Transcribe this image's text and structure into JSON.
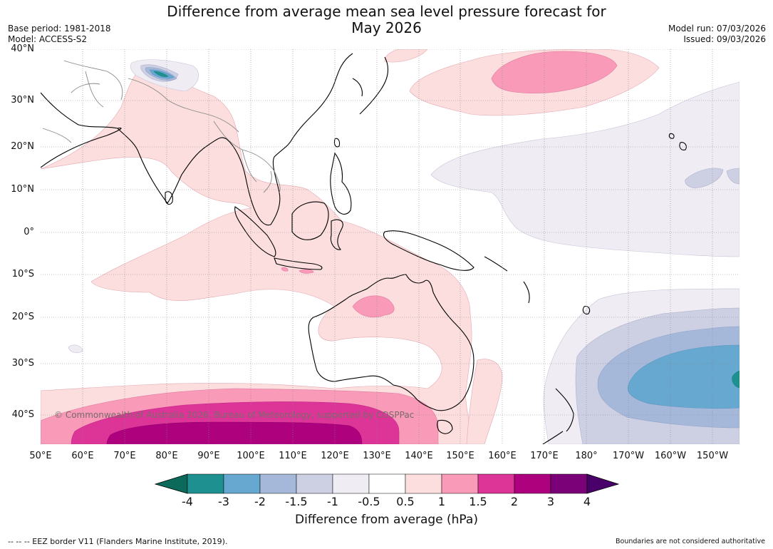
{
  "title_line1": "Difference from average mean sea level pressure forecast for",
  "title_line2": "May 2026",
  "base_period": "Base period: 1981-2018",
  "model": "Model: ACCESS-S2",
  "model_run": "Model run: 07/03/2026",
  "issued": "Issued: 09/03/2026",
  "copyright": "© Commonwealth of Australia 2026, Bureau of Meteorology, supported by COSPPac",
  "lat_labels": [
    "40°N",
    "30°N",
    "20°N",
    "10°N",
    "0°",
    "10°S",
    "20°S",
    "30°S",
    "40°S"
  ],
  "lon_labels": [
    "50°E",
    "60°E",
    "70°E",
    "80°E",
    "90°E",
    "100°E",
    "110°E",
    "120°E",
    "130°E",
    "140°E",
    "150°E",
    "160°E",
    "170°E",
    "180°",
    "170°W",
    "160°W",
    "150°W"
  ],
  "colorbar": {
    "label": "Difference from average (hPa)",
    "ticks": [
      "-4",
      "-3",
      "-2",
      "-1.5",
      "-1",
      "-0.5",
      "0.5",
      "1",
      "1.5",
      "2",
      "3",
      "4"
    ],
    "colors": {
      "under": "#0b6a5a",
      "bins": [
        "#1f9090",
        "#66a8d0",
        "#a6b8da",
        "#cdcfe3",
        "#efecf4",
        "#ffffff",
        "#fcdede",
        "#f89ab8",
        "#dd3498",
        "#ae017e",
        "#7a0177"
      ],
      "over": "#49006a"
    }
  },
  "footer_left": "--  --  -- EEZ border V11 (Flanders Marine Institute, 2019).",
  "footer_right": "Boundaries are not considered authoritative"
}
